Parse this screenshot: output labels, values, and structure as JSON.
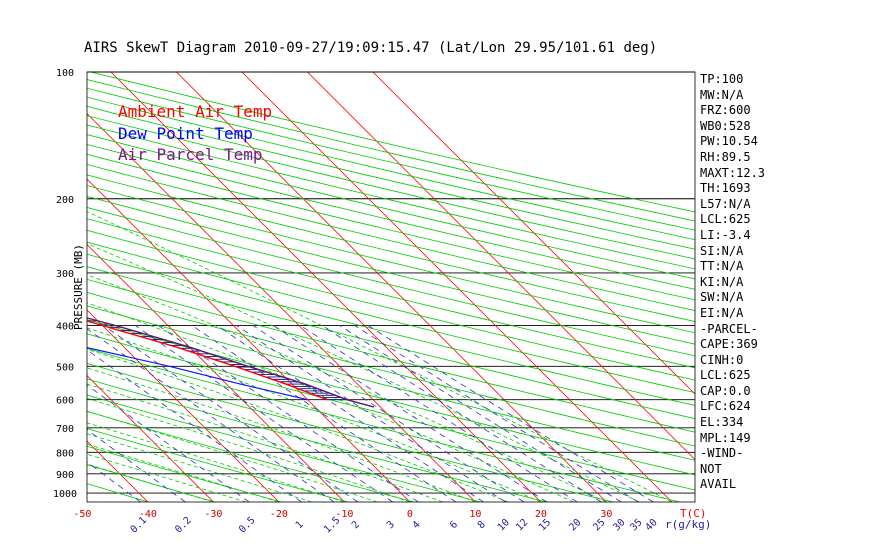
{
  "title": "AIRS SkewT Diagram 2010-09-27/19:09:15.47 (Lat/Lon 29.95/101.61 deg)",
  "legend": [
    {
      "label": "Ambient Air Temp",
      "color": "#ff0000"
    },
    {
      "label": "Dew Point Temp",
      "color": "#0000ff"
    },
    {
      "label": "Air Parcel Temp",
      "color": "#7a1a8a"
    }
  ],
  "colors": {
    "ambient": "#ff0000",
    "dewpoint": "#1414ff",
    "parcel": "#5a1a6a",
    "dry_adiabat": "#00cc00",
    "moist_adiabat": "#00cc00",
    "isotherm": "#ff0000",
    "mixing_ratio": "#3030c0",
    "grid": "#000000",
    "cape": "#101090"
  },
  "sidebar": [
    "TP:100",
    "MW:N/A",
    "FRZ:600",
    "WB0:528",
    "PW:10.54",
    "RH:89.5",
    "MAXT:12.3",
    "TH:1693",
    "L57:N/A",
    "LCL:625",
    "LI:-3.4",
    "SI:N/A",
    "TT:N/A",
    "KI:N/A",
    "SW:N/A",
    "EI:N/A",
    "-PARCEL-",
    "CAPE:369",
    "CINH:0",
    "LCL:625",
    "CAP:0.0",
    "LFC:624",
    "EL:334",
    "MPL:149",
    "-WIND-",
    "NOT",
    "AVAIL"
  ],
  "chart_data": {
    "type": "skewt",
    "title": "AIRS SkewT Diagram 2010-09-27/19:09:15.47 (Lat/Lon 29.95/101.61 deg)",
    "ylabel": "PRESSURE (MB)",
    "xlabel_bottom": "T(C)",
    "xlabel_mixing": "r(g/kg)",
    "pressure_ticks": [
      100,
      200,
      300,
      400,
      500,
      600,
      700,
      800,
      900,
      1000
    ],
    "pressure_range": [
      100,
      1050
    ],
    "top_temp_ticks": [
      -120,
      -110,
      -100,
      -90,
      -80,
      -70,
      -60,
      -50,
      -40
    ],
    "bottom_temp_ticks": [
      -50,
      -40,
      -30,
      -20,
      -10,
      0,
      10,
      20,
      30
    ],
    "mixing_ratio_ticks": [
      "0.1",
      "0.2",
      "0.5",
      "1",
      "1.5",
      "2",
      "3",
      "4",
      "6",
      "8",
      "10",
      "12",
      "15",
      "20",
      "25",
      "30",
      "35",
      "40"
    ],
    "mixing_ratio_values": [
      0.1,
      0.2,
      0.5,
      1,
      1.5,
      2,
      3,
      4,
      6,
      8,
      10,
      12,
      15,
      20,
      25,
      30,
      35,
      40
    ],
    "ambient_temperature": [
      {
        "p": 100,
        "t": -77
      },
      {
        "p": 150,
        "t": -86
      },
      {
        "p": 200,
        "t": -70
      },
      {
        "p": 250,
        "t": -54
      },
      {
        "p": 300,
        "t": -40
      },
      {
        "p": 350,
        "t": -29
      },
      {
        "p": 400,
        "t": -20
      },
      {
        "p": 450,
        "t": -12
      },
      {
        "p": 500,
        "t": -6
      },
      {
        "p": 550,
        "t": -1
      },
      {
        "p": 600,
        "t": 3
      }
    ],
    "dewpoint_temperature": [
      {
        "p": 100,
        "t": -107
      },
      {
        "p": 150,
        "t": -112
      },
      {
        "p": 200,
        "t": -95
      },
      {
        "p": 250,
        "t": -80
      },
      {
        "p": 300,
        "t": -66
      },
      {
        "p": 350,
        "t": -50
      },
      {
        "p": 400,
        "t": -37
      },
      {
        "p": 450,
        "t": -26
      },
      {
        "p": 500,
        "t": -16
      },
      {
        "p": 550,
        "t": -8
      },
      {
        "p": 600,
        "t": 0
      }
    ],
    "parcel_temperature": [
      {
        "p": 100,
        "t": -114
      },
      {
        "p": 150,
        "t": -98
      },
      {
        "p": 200,
        "t": -71
      },
      {
        "p": 250,
        "t": -54
      },
      {
        "p": 300,
        "t": -39
      },
      {
        "p": 334,
        "t": -32
      },
      {
        "p": 400,
        "t": -18
      },
      {
        "p": 450,
        "t": -10
      },
      {
        "p": 500,
        "t": -4
      },
      {
        "p": 550,
        "t": 2
      },
      {
        "p": 600,
        "t": 6
      },
      {
        "p": 625,
        "t": 9
      }
    ]
  }
}
